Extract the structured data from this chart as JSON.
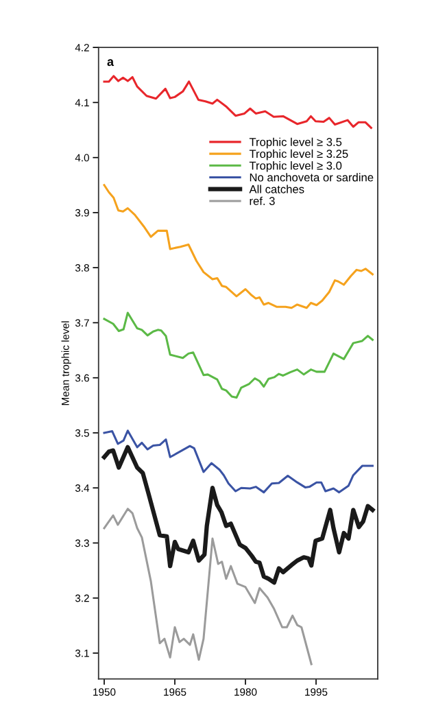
{
  "chart_data": {
    "type": "line",
    "ylabel": "Mean trophic level",
    "annotations": [
      "a"
    ],
    "xlim": [
      1948.8,
      2008.1
    ],
    "ylim": [
      3.053,
      4.2
    ],
    "xticks": [
      1950,
      1965,
      1980,
      1995
    ],
    "yticks": [
      3.1,
      3.2,
      3.3,
      3.4,
      3.5,
      3.6,
      3.7,
      3.8,
      3.9,
      {
        "value": 4.0,
        "label": "4.0"
      },
      4.1,
      4.2
    ],
    "grid": false,
    "legend": "top right",
    "marker": "none",
    "line_style": "solid",
    "series": [
      {
        "name": "Trophic level ≥ 3.5",
        "color": "#e8262b",
        "x": [
          1950,
          1951,
          1952,
          1953,
          1954,
          1955,
          1956,
          1957,
          1959,
          1961,
          1963,
          1964,
          1965,
          1966.7,
          1968,
          1970,
          1971.5,
          1973,
          1974,
          1976,
          1977.9,
          1979.8,
          1981,
          1982.2,
          1984.2,
          1986,
          1988,
          1991,
          1993,
          1993.9,
          1994.9,
          1996.6,
          1997.8,
          1999,
          2001.7,
          2002.9,
          2004,
          2005.5,
          2006.7
        ],
        "values": [
          4.138,
          4.138,
          4.148,
          4.139,
          4.145,
          4.139,
          4.146,
          4.129,
          4.112,
          4.107,
          4.125,
          4.108,
          4.11,
          4.12,
          4.138,
          4.105,
          4.102,
          4.098,
          4.105,
          4.092,
          4.076,
          4.08,
          4.089,
          4.08,
          4.084,
          4.074,
          4.075,
          4.061,
          4.066,
          4.075,
          4.066,
          4.065,
          4.072,
          4.06,
          4.068,
          4.056,
          4.064,
          4.064,
          4.054
        ]
      },
      {
        "name": "Trophic level ≥ 3.25",
        "color": "#f5a21d",
        "x": [
          1950,
          1951,
          1952,
          1953,
          1954,
          1955,
          1956.5,
          1958.4,
          1959.9,
          1961.4,
          1963.3,
          1964,
          1966.2,
          1967.9,
          1969.6,
          1971.1,
          1973,
          1974,
          1975,
          1975.9,
          1978.1,
          1980,
          1981.3,
          1982.2,
          1983,
          1983.9,
          1984.9,
          1986.6,
          1988.5,
          1989.8,
          1991,
          1993,
          1993.9,
          1995.1,
          1996.3,
          1997.8,
          1999,
          1999.7,
          2000.9,
          2002.4,
          2003.6,
          2004.6,
          2005.5,
          2007
        ],
        "values": [
          3.95,
          3.937,
          3.927,
          3.904,
          3.902,
          3.908,
          3.896,
          3.875,
          3.856,
          3.867,
          3.867,
          3.834,
          3.838,
          3.842,
          3.812,
          3.792,
          3.779,
          3.781,
          3.767,
          3.765,
          3.748,
          3.761,
          3.75,
          3.744,
          3.746,
          3.733,
          3.736,
          3.729,
          3.729,
          3.727,
          3.733,
          3.727,
          3.736,
          3.732,
          3.74,
          3.756,
          3.777,
          3.775,
          3.769,
          3.785,
          3.796,
          3.794,
          3.798,
          3.788
        ]
      },
      {
        "name": "Trophic level ≥ 3.0",
        "color": "#5bb946",
        "x": [
          1950,
          1951.9,
          1953.1,
          1954.1,
          1955,
          1957,
          1958,
          1959.2,
          1960.4,
          1961.4,
          1962.1,
          1963.1,
          1964,
          1966.7,
          1967.9,
          1968.9,
          1971.1,
          1972,
          1974,
          1975,
          1975.9,
          1977.1,
          1978.1,
          1979.1,
          1980.8,
          1982,
          1983,
          1983.9,
          1984.9,
          1986.1,
          1987.1,
          1988,
          1989.5,
          1991,
          1992.4,
          1993.9,
          1995.1,
          1996.8,
          1998.7,
          2000.9,
          2002.9,
          2004.8,
          2006,
          2007
        ],
        "values": [
          3.707,
          3.698,
          3.685,
          3.688,
          3.718,
          3.69,
          3.687,
          3.677,
          3.684,
          3.687,
          3.686,
          3.676,
          3.642,
          3.636,
          3.644,
          3.646,
          3.605,
          3.606,
          3.597,
          3.58,
          3.577,
          3.566,
          3.564,
          3.582,
          3.589,
          3.599,
          3.594,
          3.584,
          3.598,
          3.601,
          3.607,
          3.604,
          3.61,
          3.615,
          3.606,
          3.615,
          3.611,
          3.611,
          3.644,
          3.634,
          3.663,
          3.667,
          3.676,
          3.669
        ]
      },
      {
        "name": "No anchoveta or sardine",
        "color": "#3a53a4",
        "x": [
          1950,
          1951.7,
          1952.9,
          1954.1,
          1955,
          1957,
          1958,
          1959.2,
          1960.4,
          1961.8,
          1963.1,
          1964,
          1968.2,
          1969.1,
          1971.1,
          1972.8,
          1974.5,
          1975.4,
          1976.4,
          1977.9,
          1979.1,
          1981,
          1982.2,
          1983.9,
          1985.6,
          1987.1,
          1989,
          1991,
          1992.7,
          1993.6,
          1995.1,
          1996.1,
          1997,
          1998.7,
          1999.9,
          2001.9,
          2002.9,
          2004.8,
          2007
        ],
        "values": [
          3.5,
          3.503,
          3.48,
          3.486,
          3.504,
          3.474,
          3.482,
          3.47,
          3.477,
          3.478,
          3.488,
          3.456,
          3.476,
          3.472,
          3.429,
          3.445,
          3.433,
          3.423,
          3.408,
          3.394,
          3.4,
          3.399,
          3.402,
          3.392,
          3.408,
          3.409,
          3.422,
          3.41,
          3.401,
          3.402,
          3.41,
          3.41,
          3.394,
          3.399,
          3.392,
          3.404,
          3.423,
          3.44,
          3.44
        ]
      },
      {
        "name": "All catches",
        "color": "#1a1a1a",
        "x": [
          1950,
          1951,
          1951.9,
          1953.1,
          1955,
          1957,
          1958.2,
          1959.4,
          1961.8,
          1963.3,
          1964,
          1965,
          1965.7,
          1967.9,
          1968.9,
          1970.1,
          1971.3,
          1971.8,
          1973,
          1974,
          1974.9,
          1975.9,
          1976.9,
          1978.8,
          1980,
          1981.3,
          1982.2,
          1983,
          1983.9,
          1984.9,
          1986.1,
          1987.1,
          1988,
          1989.8,
          1991,
          1992.4,
          1993.4,
          1994,
          1994.9,
          1996.3,
          1998,
          1998.7,
          1999.9,
          2000.9,
          2001.9,
          2002.9,
          2004.1,
          2005,
          2006,
          2007
        ],
        "values": [
          3.456,
          3.466,
          3.468,
          3.437,
          3.474,
          3.437,
          3.427,
          3.39,
          3.314,
          3.312,
          3.258,
          3.302,
          3.289,
          3.283,
          3.304,
          3.268,
          3.279,
          3.331,
          3.4,
          3.369,
          3.356,
          3.331,
          3.335,
          3.297,
          3.291,
          3.277,
          3.266,
          3.264,
          3.239,
          3.235,
          3.228,
          3.254,
          3.247,
          3.26,
          3.268,
          3.274,
          3.272,
          3.259,
          3.304,
          3.308,
          3.36,
          3.327,
          3.283,
          3.318,
          3.308,
          3.36,
          3.329,
          3.339,
          3.367,
          3.36
        ]
      },
      {
        "name": "ref. 3",
        "color": "#9b9b9b",
        "x": [
          1950,
          1951.9,
          1952.9,
          1955,
          1956,
          1957,
          1958,
          1959.9,
          1961.8,
          1962.8,
          1964,
          1965,
          1966,
          1966.9,
          1968.2,
          1968.9,
          1970.1,
          1971.1,
          1973,
          1974.2,
          1975,
          1975.9,
          1976.9,
          1978.3,
          1980,
          1982,
          1983,
          1984.7,
          1986.1,
          1987.8,
          1988.8,
          1990,
          1991,
          1991.9,
          1994
        ],
        "values": [
          3.327,
          3.35,
          3.333,
          3.362,
          3.354,
          3.327,
          3.31,
          3.231,
          3.118,
          3.126,
          3.092,
          3.147,
          3.12,
          3.126,
          3.115,
          3.134,
          3.088,
          3.126,
          3.308,
          3.262,
          3.266,
          3.235,
          3.258,
          3.226,
          3.22,
          3.191,
          3.218,
          3.201,
          3.18,
          3.147,
          3.147,
          3.168,
          3.151,
          3.147,
          3.08
        ]
      }
    ]
  }
}
